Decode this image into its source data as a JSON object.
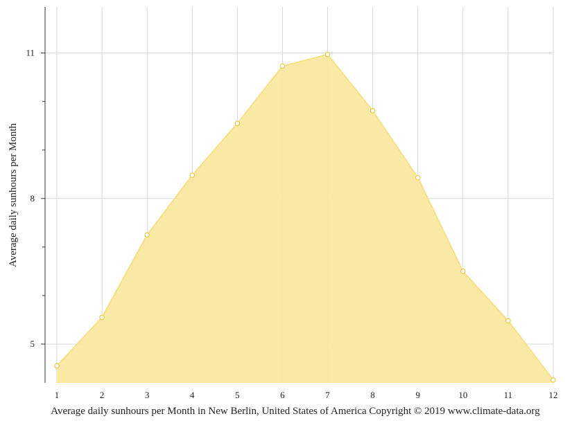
{
  "chart_data": {
    "type": "area",
    "title": "",
    "xlabel": "",
    "ylabel": "Average daily sunhours per Month",
    "caption": "Average daily sunhours per Month in New Berlin, United States of America Copyright © 2019 www.climate-data.org",
    "x": [
      1,
      2,
      3,
      4,
      5,
      6,
      7,
      8,
      9,
      10,
      11,
      12
    ],
    "x_tick_labels": [
      "1",
      "2",
      "3",
      "4",
      "5",
      "6",
      "7",
      "8",
      "9",
      "10",
      "11",
      "12"
    ],
    "series": [
      {
        "values": [
          4.55,
          5.55,
          7.25,
          8.48,
          9.55,
          10.73,
          10.97,
          9.81,
          8.43,
          6.5,
          5.48,
          4.26
        ]
      }
    ],
    "xlim": [
      1,
      12
    ],
    "ylim": [
      4.2,
      11.95
    ],
    "y_ticks": [
      5,
      8,
      11
    ],
    "y_minor_ticks": [
      6,
      7,
      9,
      10
    ],
    "grid": true,
    "colors": {
      "fill": "#f8e9a0",
      "line": "#f7e08a",
      "marker_edge": "#e8c94a",
      "grid": "#d9d9d9",
      "axis": "#333333"
    }
  }
}
